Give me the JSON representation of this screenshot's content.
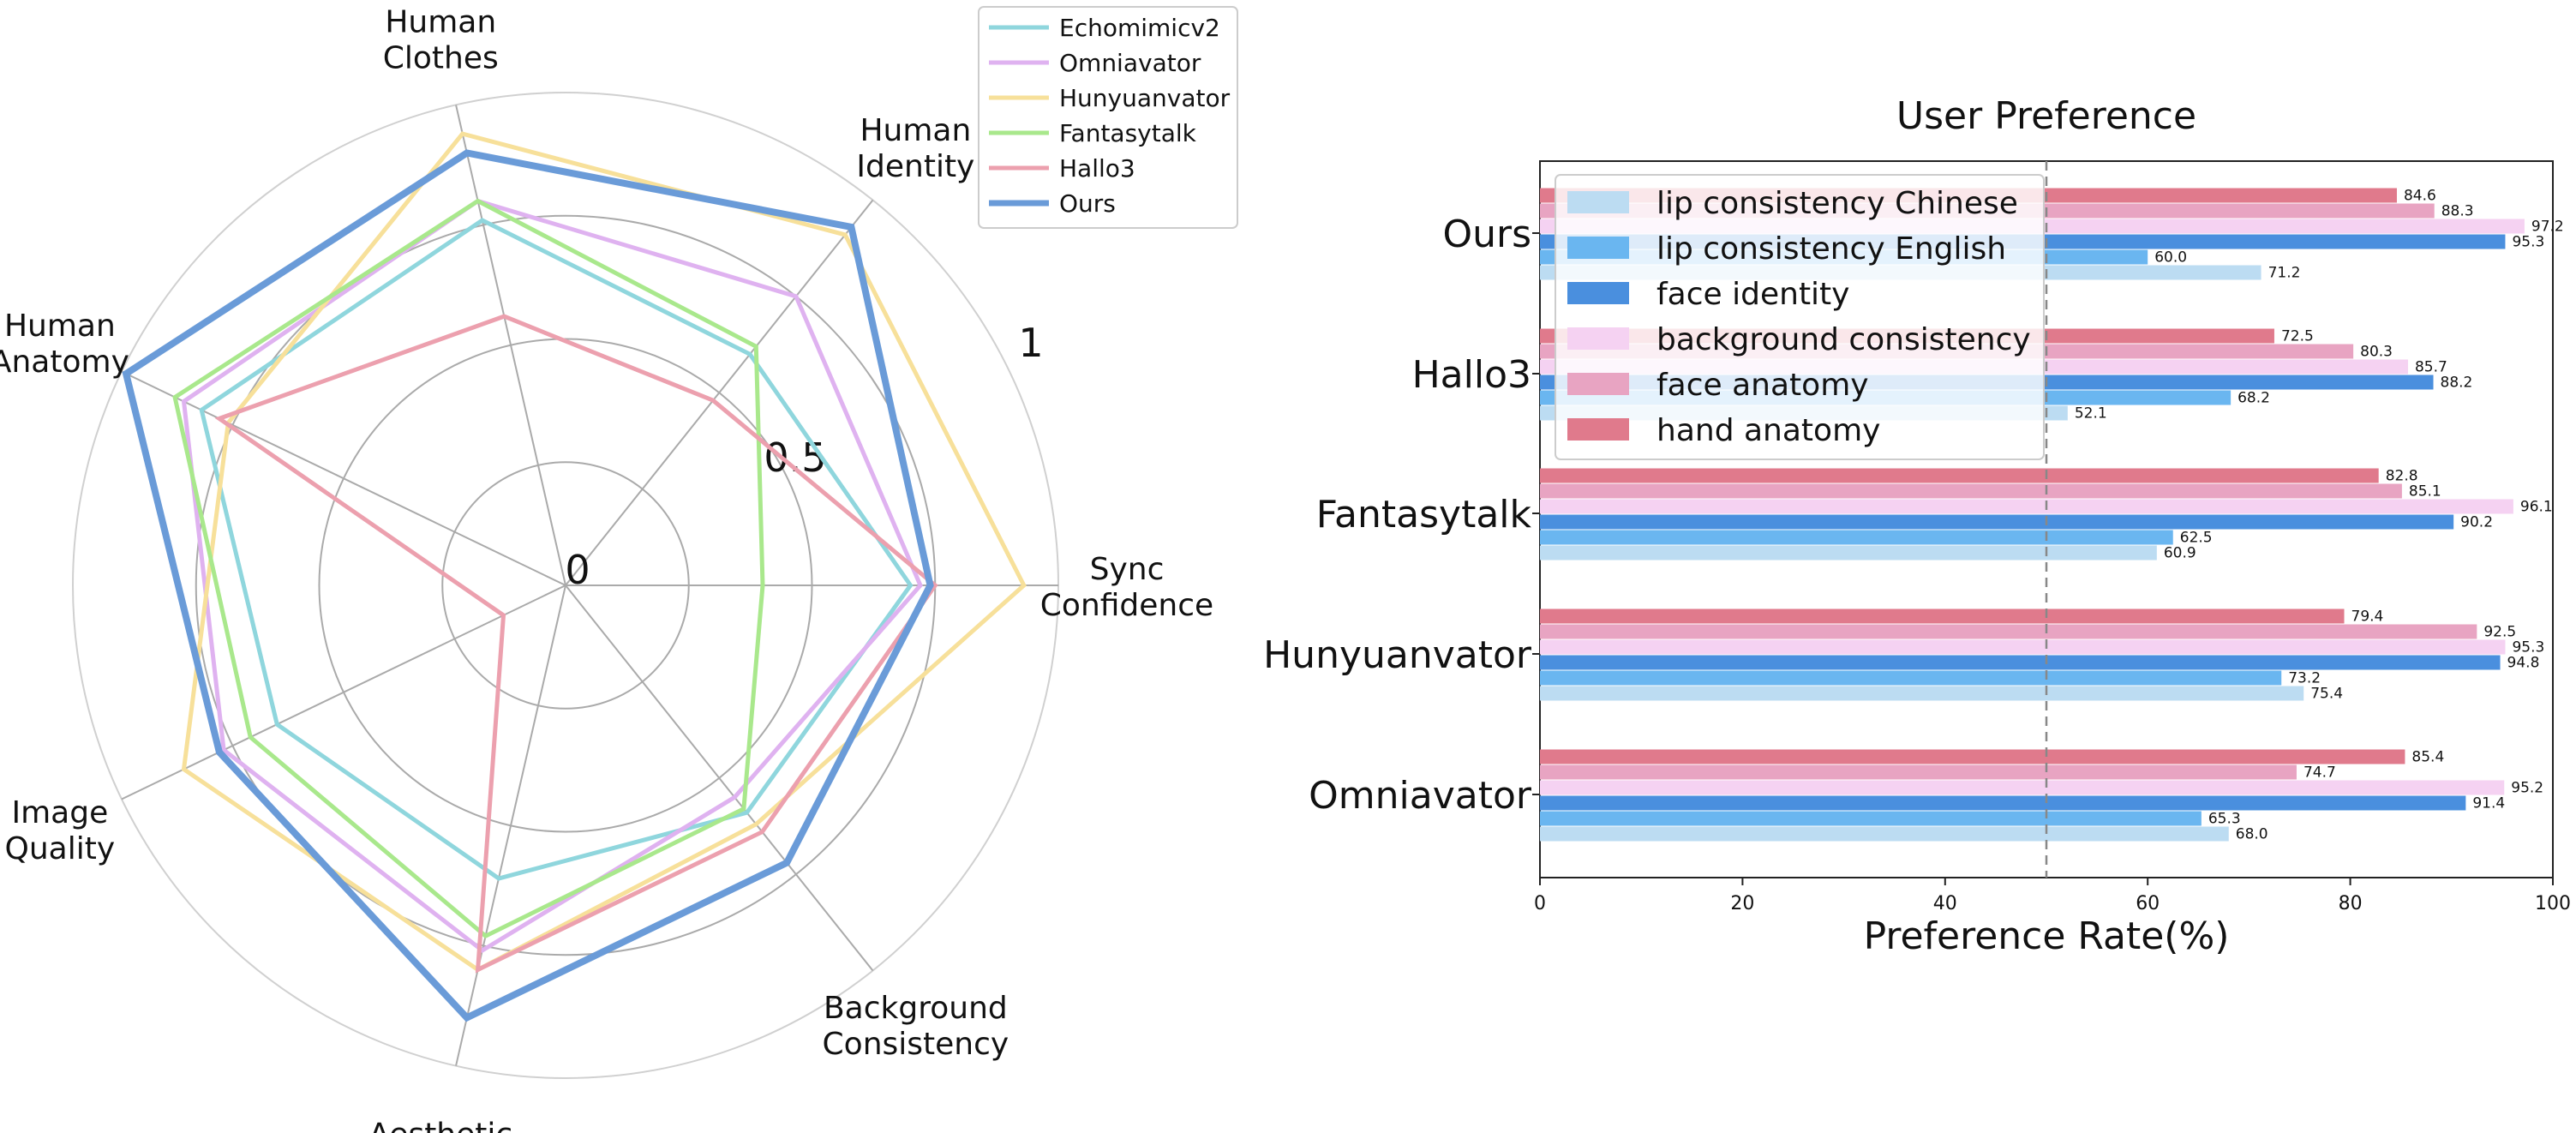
{
  "chart_data": [
    {
      "type": "radar",
      "axes": [
        "Sync Confidence",
        "Human Identity",
        "Human Clothes",
        "Human Anatomy",
        "Image Quality",
        "Aesthetic",
        "Background Consistency"
      ],
      "axis_labels": [
        [
          "Sync",
          "Confidence"
        ],
        [
          "Human",
          "Identity"
        ],
        [
          "Human",
          "Clothes"
        ],
        [
          "Human",
          "Anatomy"
        ],
        [
          "Image",
          "Quality"
        ],
        [
          "Aesthetic"
        ],
        [
          "Background",
          "Consistency"
        ]
      ],
      "radial_ticks": [
        "0",
        "0.5",
        "1"
      ],
      "range": [
        0,
        1
      ],
      "grid": true,
      "legend_position": "top-right",
      "series": [
        {
          "name": "Echomimicv2",
          "color": "#8fd6dd",
          "values": [
            0.7,
            0.6,
            0.76,
            0.82,
            0.65,
            0.61,
            0.59
          ]
        },
        {
          "name": "Omniavator",
          "color": "#dfb2f0",
          "values": [
            0.72,
            0.75,
            0.8,
            0.86,
            0.77,
            0.76,
            0.55
          ]
        },
        {
          "name": "Hunyuanvator",
          "color": "#f7e09a",
          "values": [
            0.93,
            0.91,
            0.94,
            0.76,
            0.86,
            0.8,
            0.62
          ]
        },
        {
          "name": "Fantasytalk",
          "color": "#a9e88c",
          "values": [
            0.4,
            0.62,
            0.8,
            0.88,
            0.71,
            0.73,
            0.58
          ]
        },
        {
          "name": "Hallo3",
          "color": "#eca0ae",
          "values": [
            0.75,
            0.48,
            0.56,
            0.78,
            0.14,
            0.8,
            0.64
          ]
        },
        {
          "name": "Ours",
          "color": "#6a9bd8",
          "values": [
            0.74,
            0.93,
            0.9,
            0.99,
            0.78,
            0.9,
            0.72
          ]
        }
      ]
    },
    {
      "type": "bar",
      "orientation": "horizontal",
      "title": "User Preference",
      "xlabel": "Preference Rate(%)",
      "xlim": [
        0,
        100
      ],
      "xticks": [
        "0",
        "20",
        "40",
        "60",
        "80",
        "100"
      ],
      "reference_line": 50,
      "legend_position": "top-left",
      "categories": [
        "Ours",
        "Hallo3",
        "Fantasytalk",
        "Hunyuanvator",
        "Omniavator"
      ],
      "series": [
        {
          "name": "lip consistency Chinese",
          "color": "#bcdcf2",
          "values": [
            71.2,
            52.1,
            60.9,
            75.4,
            68.0
          ],
          "labels": [
            "71.2",
            "52.1",
            "60.9",
            "75.4",
            "68.0"
          ]
        },
        {
          "name": "lip consistency English",
          "color": "#6ab6f0",
          "values": [
            60.0,
            68.2,
            62.5,
            73.2,
            65.3
          ],
          "labels": [
            "60.0",
            "68.2",
            "62.5",
            "73.2",
            "65.3"
          ]
        },
        {
          "name": "face identity",
          "color": "#4a8fde",
          "values": [
            95.3,
            88.2,
            90.2,
            94.8,
            91.4
          ],
          "labels": [
            "95.3",
            "88.2",
            "90.2",
            "94.8",
            "91.4"
          ]
        },
        {
          "name": "background consistency",
          "color": "#f5d2f2",
          "values": [
            97.2,
            85.7,
            96.1,
            95.3,
            95.2
          ],
          "labels": [
            "97.2",
            "85.7",
            "96.1",
            "95.3",
            "95.2"
          ]
        },
        {
          "name": "face anatomy",
          "color": "#e8a4c2",
          "values": [
            88.3,
            80.3,
            85.1,
            92.5,
            74.7
          ],
          "labels": [
            "88.3",
            "80.3",
            "85.1",
            "92.5",
            "74.7"
          ]
        },
        {
          "name": "hand anatomy",
          "color": "#e07a8c",
          "values": [
            84.6,
            72.5,
            82.8,
            79.4,
            85.4
          ],
          "labels": [
            "84.6",
            "72.5",
            "82.8",
            "79.4",
            "85.4"
          ]
        }
      ]
    }
  ]
}
